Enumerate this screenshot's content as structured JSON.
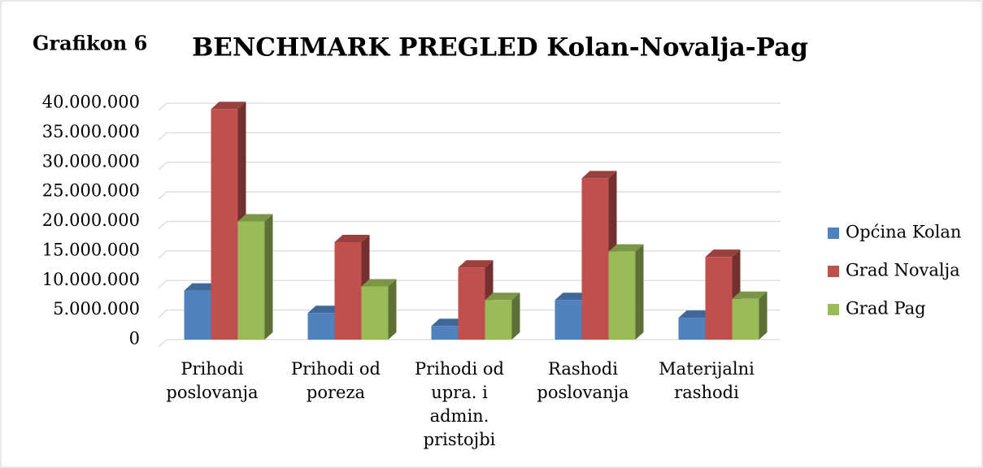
{
  "chart_data": {
    "type": "bar3d",
    "label": "Grafikon 6",
    "title": "BENCHMARK PREGLED Kolan-Novalja-Pag",
    "categories": [
      [
        "Prihodi",
        "poslovanja"
      ],
      [
        "Prihodi od",
        "poreza"
      ],
      [
        "Prihodi od",
        "upra. i",
        "admin.",
        "pristojbi"
      ],
      [
        "Rashodi",
        "poslovanja"
      ],
      [
        "Materijalni",
        "rashodi"
      ]
    ],
    "series": [
      {
        "name": "Općina Kolan",
        "color": "#4f81bd",
        "values": [
          8300000,
          4500000,
          2300000,
          6700000,
          3700000
        ]
      },
      {
        "name": "Grad Novalja",
        "color": "#c0504d",
        "values": [
          39000000,
          16500000,
          12200000,
          27300000,
          14000000
        ]
      },
      {
        "name": "Grad Pag",
        "color": "#9bbb59",
        "values": [
          20000000,
          9000000,
          6700000,
          14900000,
          6900000
        ]
      }
    ],
    "ylim": [
      0,
      40000000
    ],
    "yticks": [
      0,
      {
        "value": 5000000,
        "label": "5.000.000"
      },
      {
        "value": 10000000,
        "label": "10.000.000"
      },
      {
        "value": 15000000,
        "label": "15.000.000"
      },
      {
        "value": 20000000,
        "label": "20.000.000"
      },
      {
        "value": 25000000,
        "label": "25.000.000"
      },
      {
        "value": 30000000,
        "label": "30.000.000"
      },
      {
        "value": 35000000,
        "label": "35.000.000"
      },
      {
        "value": 40000000,
        "label": "40.000.000"
      }
    ],
    "grid": true,
    "legend": "right"
  }
}
